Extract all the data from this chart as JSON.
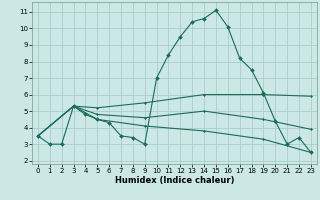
{
  "title": "",
  "xlabel": "Humidex (Indice chaleur)",
  "background_color": "#cce8e4",
  "grid_color": "#aaccc8",
  "line_color": "#1a6b5a",
  "xlim": [
    -0.5,
    23.5
  ],
  "ylim": [
    1.8,
    11.6
  ],
  "yticks": [
    2,
    3,
    4,
    5,
    6,
    7,
    8,
    9,
    10,
    11
  ],
  "xticks": [
    0,
    1,
    2,
    3,
    4,
    5,
    6,
    7,
    8,
    9,
    10,
    11,
    12,
    13,
    14,
    15,
    16,
    17,
    18,
    19,
    20,
    21,
    22,
    23
  ],
  "series": [
    {
      "x": [
        0,
        1,
        2,
        3,
        4,
        5,
        6,
        7,
        8,
        9,
        10,
        11,
        12,
        13,
        14,
        15,
        16,
        17,
        18,
        19,
        20,
        21,
        22,
        23
      ],
      "y": [
        3.5,
        3.0,
        3.0,
        5.3,
        4.8,
        4.5,
        4.3,
        3.5,
        3.4,
        3.0,
        7.0,
        8.4,
        9.5,
        10.4,
        10.6,
        11.1,
        10.1,
        8.2,
        7.5,
        6.1,
        4.4,
        3.0,
        3.4,
        2.5
      ]
    },
    {
      "x": [
        0,
        3,
        5,
        9,
        14,
        19,
        23
      ],
      "y": [
        3.5,
        5.3,
        5.2,
        5.5,
        6.0,
        6.0,
        5.9
      ]
    },
    {
      "x": [
        0,
        3,
        5,
        9,
        14,
        19,
        23
      ],
      "y": [
        3.5,
        5.3,
        4.8,
        4.6,
        5.0,
        4.5,
        3.9
      ]
    },
    {
      "x": [
        0,
        3,
        5,
        9,
        14,
        19,
        23
      ],
      "y": [
        3.5,
        5.3,
        4.5,
        4.1,
        3.8,
        3.3,
        2.5
      ]
    }
  ],
  "xlabel_fontsize": 6.0,
  "xlabel_fontweight": "bold",
  "tick_fontsize": 5.0,
  "linewidth": 0.8,
  "markersize": 2.0
}
